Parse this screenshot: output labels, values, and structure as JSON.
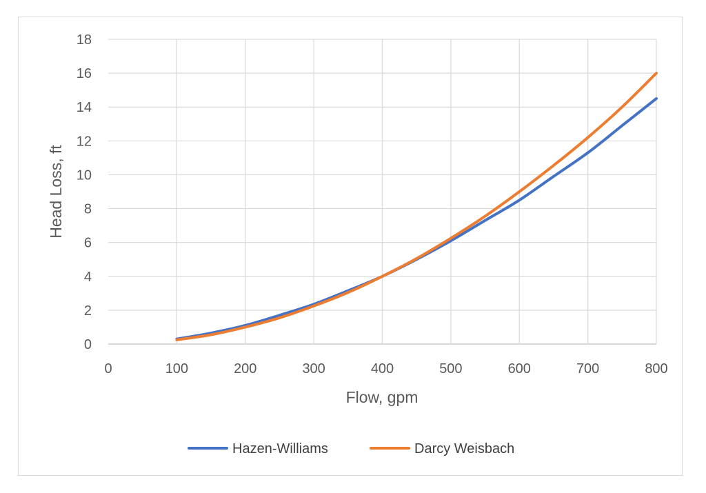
{
  "chart_data": {
    "type": "line",
    "title": "",
    "xlabel": "Flow, gpm",
    "ylabel": "Head Loss, ft",
    "xlim": [
      0,
      800
    ],
    "ylim": [
      0,
      18
    ],
    "x_ticks": [
      0,
      100,
      200,
      300,
      400,
      500,
      600,
      700,
      800
    ],
    "y_ticks": [
      0,
      2,
      4,
      6,
      8,
      10,
      12,
      14,
      16,
      18
    ],
    "grid": true,
    "legend_position": "bottom",
    "x": [
      100,
      150,
      200,
      250,
      300,
      350,
      400,
      450,
      500,
      550,
      600,
      650,
      700,
      750,
      800
    ],
    "series": [
      {
        "name": "Hazen-Williams",
        "color": "#4472C4",
        "values": [
          0.3,
          0.65,
          1.1,
          1.7,
          2.35,
          3.15,
          4.0,
          5.0,
          6.1,
          7.3,
          8.5,
          9.9,
          11.3,
          12.9,
          14.5
        ]
      },
      {
        "name": "Darcy Weisbach",
        "color": "#ED7D31",
        "values": [
          0.25,
          0.55,
          1.0,
          1.55,
          2.25,
          3.05,
          4.0,
          5.05,
          6.25,
          7.55,
          9.0,
          10.55,
          12.2,
          14.0,
          16.0
        ]
      }
    ]
  }
}
